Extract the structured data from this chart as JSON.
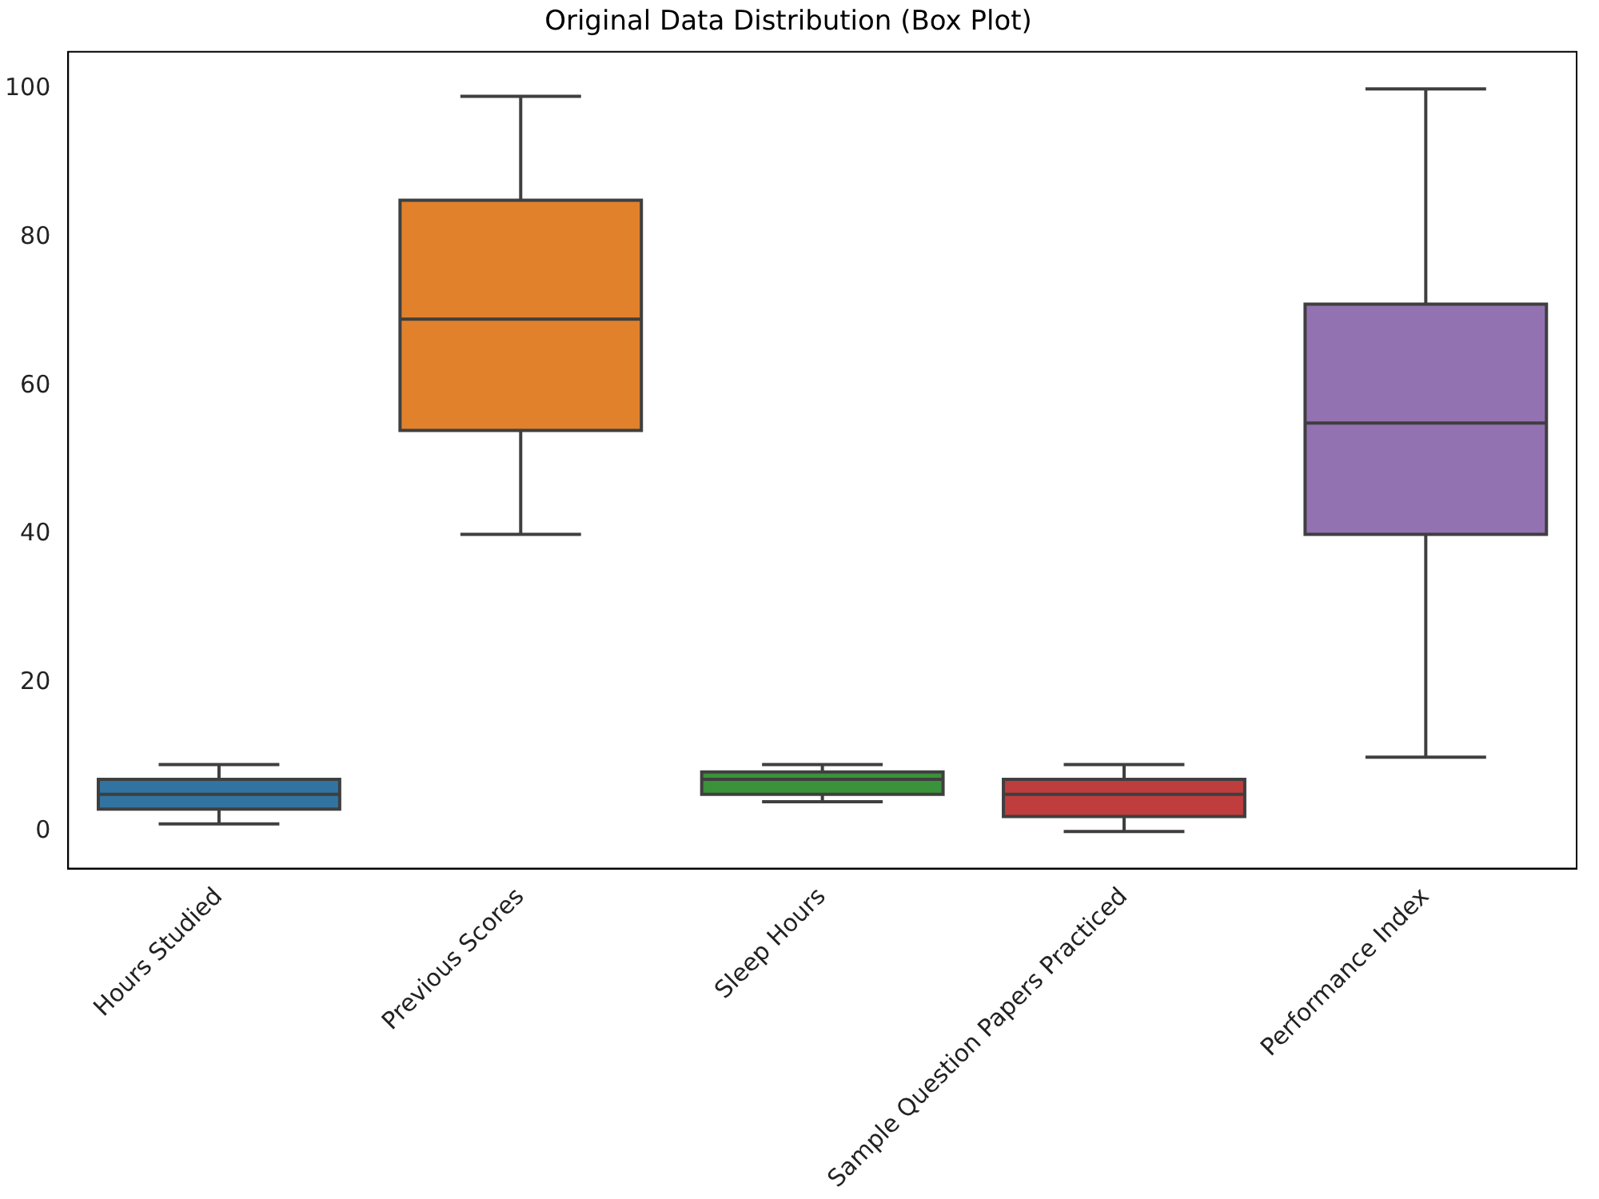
{
  "chart_data": {
    "type": "box",
    "title": "Original Data Distribution (Box Plot)",
    "categories": [
      "Hours Studied",
      "Previous Scores",
      "Sleep Hours",
      "Sample Question Papers Practiced",
      "Performance Index"
    ],
    "boxes": [
      {
        "low": 1,
        "q1": 3,
        "median": 5,
        "q3": 7,
        "high": 9
      },
      {
        "low": 40,
        "q1": 54,
        "median": 69,
        "q3": 85,
        "high": 99
      },
      {
        "low": 4,
        "q1": 5,
        "median": 7,
        "q3": 8,
        "high": 9
      },
      {
        "low": 0,
        "q1": 2,
        "median": 5,
        "q3": 7,
        "high": 9
      },
      {
        "low": 10,
        "q1": 40,
        "median": 55,
        "q3": 71,
        "high": 100
      }
    ],
    "colors": [
      "#3274a1",
      "#e1812c",
      "#3a923a",
      "#c03d3e",
      "#9372b2"
    ],
    "ylim": [
      -5,
      105
    ],
    "yticks": [
      0,
      20,
      40,
      60,
      80,
      100
    ],
    "grid": false,
    "legend": false
  }
}
